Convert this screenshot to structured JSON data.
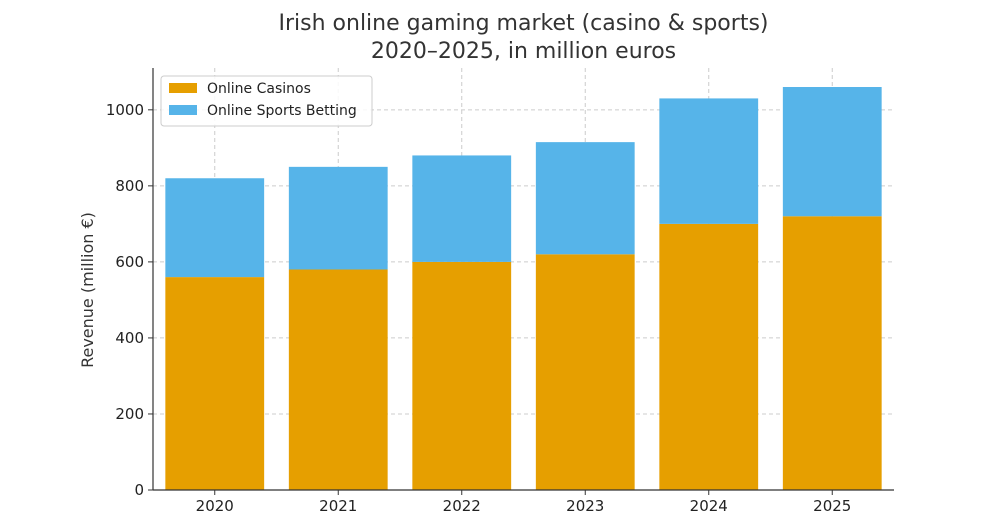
{
  "chart_data": {
    "type": "bar",
    "stacked": true,
    "title": [
      "Irish online gaming market (casino & sports)",
      "2020–2025, in million euros"
    ],
    "xlabel": "",
    "ylabel": "Revenue (million €)",
    "categories": [
      "2020",
      "2021",
      "2022",
      "2023",
      "2024",
      "2025"
    ],
    "series": [
      {
        "name": "Online Casinos",
        "color": "#E69F00",
        "values": [
          560,
          580,
          600,
          620,
          700,
          720
        ]
      },
      {
        "name": "Online Sports Betting",
        "color": "#56B4E9",
        "values": [
          260,
          270,
          280,
          295,
          330,
          340
        ]
      }
    ],
    "ylim": [
      0,
      1110
    ],
    "yticks": [
      0,
      200,
      400,
      600,
      800,
      1000
    ],
    "grid": true,
    "legend_position": "top-left"
  }
}
